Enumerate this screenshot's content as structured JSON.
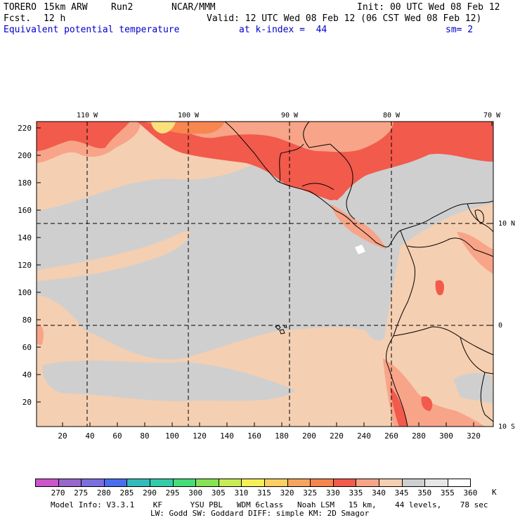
{
  "header": {
    "model": "TORERO",
    "resolution": "15km ARW",
    "run": "Run2",
    "org": "NCAR/MMM",
    "init": "Init: 00 UTC Wed 08 Feb 12",
    "fcst_label": "Fcst.",
    "fcst_value": "12 h",
    "valid": "Valid: 12 UTC Wed 08 Feb 12 (06 CST Wed 08 Feb 12)",
    "field": "Equivalent potential temperature",
    "kindex": "at k-index =  44",
    "smoothing": "sm= 2"
  },
  "map": {
    "top_lon_labels": [
      "110 W",
      "100 W",
      "90 W",
      "80 W",
      "70 W"
    ],
    "left_ticks": [
      "220",
      "200",
      "180",
      "160",
      "140",
      "120",
      "100",
      "80",
      "60",
      "40",
      "20"
    ],
    "bottom_ticks": [
      "20",
      "40",
      "60",
      "80",
      "100",
      "120",
      "140",
      "160",
      "180",
      "200",
      "220",
      "240",
      "260",
      "280",
      "300",
      "320"
    ],
    "right_lat_labels": [
      "10 N",
      "0",
      "10 S"
    ],
    "colors": {
      "pale": "#f5cfb2",
      "gray": "#cfcfcf",
      "peach": "#f7a488",
      "red": "#f25a4c",
      "orange": "#f88650",
      "yellow": "#fce07c"
    }
  },
  "legend": {
    "values": [
      "270",
      "275",
      "280",
      "285",
      "290",
      "295",
      "300",
      "305",
      "310",
      "315",
      "320",
      "325",
      "330",
      "335",
      "340",
      "345",
      "350",
      "355",
      "360"
    ],
    "unit": "K",
    "colors": [
      "#cc55cc",
      "#9966cc",
      "#7a6ee0",
      "#4a6ef0",
      "#33bbbb",
      "#33ccaa",
      "#44dd77",
      "#88e255",
      "#c8ec55",
      "#f6ef55",
      "#fcd060",
      "#f9a45e",
      "#f6854c",
      "#f25a4c",
      "#f7a488",
      "#f5cfb2",
      "#cfcfcf",
      "#e6e6e6",
      "#ffffff"
    ]
  },
  "footer": {
    "line1": "Model Info: V3.3.1    KF      YSU PBL   WDM 6class   Noah LSM   15 km,    44 levels,    78 sec",
    "line2": "LW: Godd SW: Goddard DIFF: simple KM: 2D Smagor"
  }
}
